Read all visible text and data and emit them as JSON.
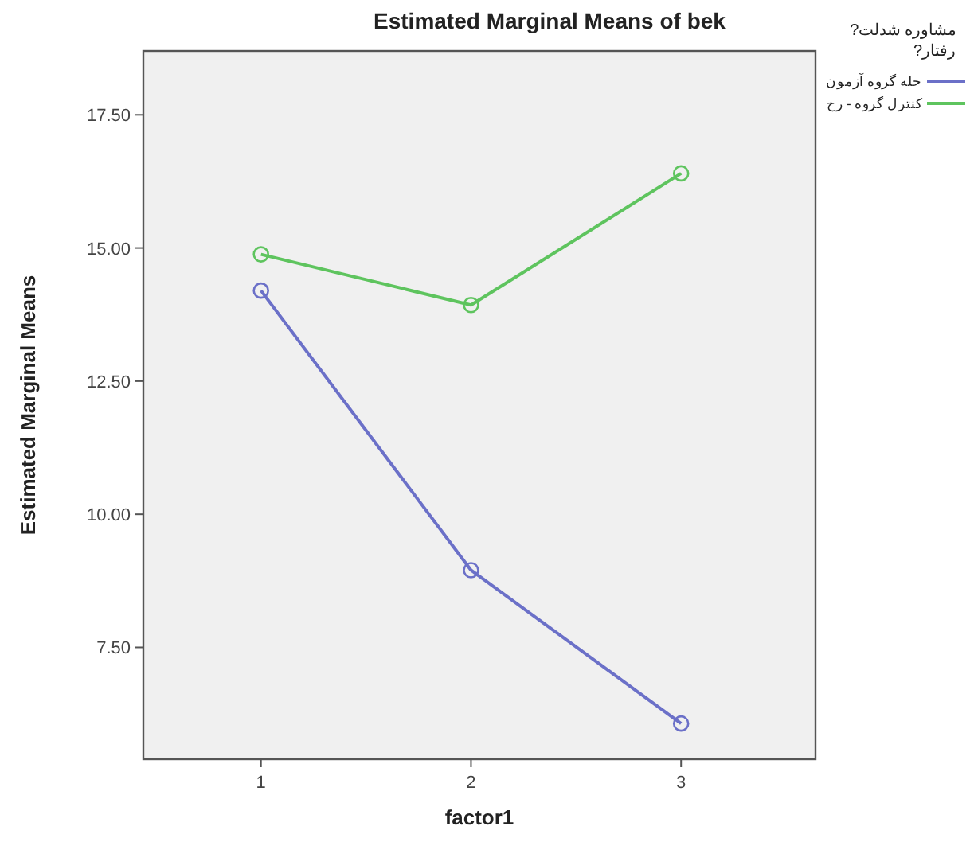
{
  "chart_data": {
    "type": "line",
    "title": "Estimated Marginal Means of bek",
    "xlabel": "factor1",
    "ylabel": "Estimated Marginal Means",
    "legend_title": "مشاوره شدلت?\nرفتار?",
    "categories": [
      "1",
      "2",
      "3"
    ],
    "series": [
      {
        "name": "حله گروه آزمون",
        "color": "#6b70c8",
        "values": [
          14.2,
          8.95,
          6.07
        ]
      },
      {
        "name": "کنترل گروه - رح",
        "color": "#5ec45e",
        "values": [
          14.88,
          13.93,
          16.4
        ]
      }
    ],
    "ylim": [
      5.4,
      18.7
    ],
    "yticks": [
      {
        "value": 7.5,
        "label": "7.50"
      },
      {
        "value": 10,
        "label": "10.00"
      },
      {
        "value": 12.5,
        "label": "12.50"
      },
      {
        "value": 15,
        "label": "15.00"
      },
      {
        "value": 17.5,
        "label": "17.50"
      }
    ],
    "marker": "circle",
    "line_style": "solid",
    "grid": false,
    "legend": "top right"
  }
}
